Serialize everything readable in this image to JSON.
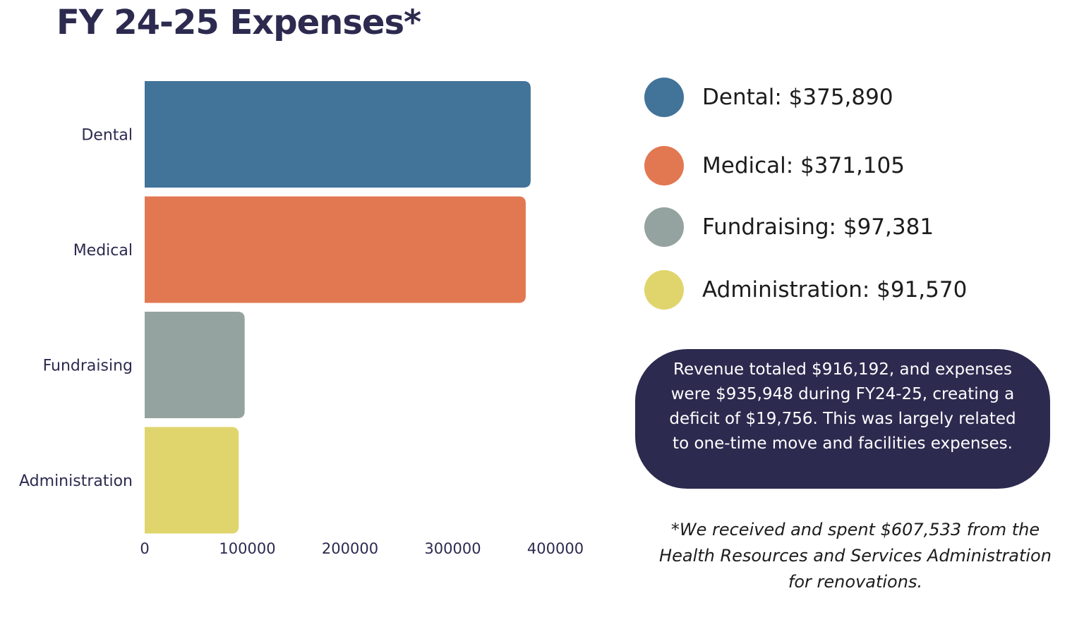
{
  "title": "FY 24-25 Expenses*",
  "colors": {
    "title": "#2c2a4f",
    "dental": "#427399",
    "medical": "#e27852",
    "fundraising": "#94a39f",
    "administration": "#e0d56d",
    "note_background": "#2c2a4f",
    "axis_text": "#2c2a4f"
  },
  "chart_data": {
    "type": "bar",
    "orientation": "horizontal",
    "categories": [
      "Dental",
      "Medical",
      "Fundraising",
      "Administration"
    ],
    "values": [
      375890,
      371105,
      97381,
      91570
    ],
    "colors": [
      "#427399",
      "#e27852",
      "#94a39f",
      "#e0d56d"
    ],
    "xlim": [
      0,
      400000
    ],
    "xticks": [
      0,
      100000,
      200000,
      300000,
      400000
    ],
    "xtick_labels": [
      "0",
      "100000",
      "200000",
      "300000",
      "400000"
    ],
    "grid": false,
    "legend_position": "right"
  },
  "legend": [
    {
      "label": "Dental: $375,890",
      "color": "#427399"
    },
    {
      "label": "Medical: $371,105",
      "color": "#e27852"
    },
    {
      "label": "Fundraising: $97,381",
      "color": "#94a39f"
    },
    {
      "label": "Administration: $91,570",
      "color": "#e0d56d"
    }
  ],
  "note": "Revenue totaled $916,192, and expenses were $935,948 during FY24-25, creating a deficit of $19,756. This was largely related to one-time move and facilities expenses.",
  "footnote": "*We received and spent $607,533 from the Health Resources and Services Administration for renovations."
}
